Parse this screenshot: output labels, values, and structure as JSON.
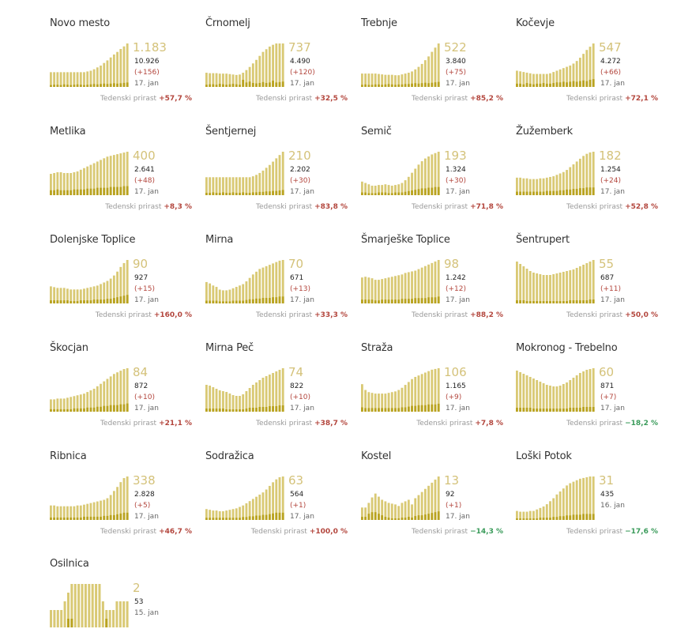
{
  "growth_label": "Tedenski prirast",
  "colors": {
    "bar": "#d9c974",
    "bar_dark": "#b9a320",
    "accent_text": "#d4c27a",
    "positive": "#b3463d",
    "negative": "#3a9b5a"
  },
  "chart_data": [
    {
      "type": "bar",
      "title": "Novo mesto",
      "big": "1.183",
      "total": "10.926",
      "increase": "(+156)",
      "date": "17. jan",
      "growth": "+57,7 %",
      "growth_sign": "pos",
      "values": [
        40,
        40,
        40,
        40,
        40,
        40,
        40,
        40,
        40,
        40,
        40,
        42,
        44,
        48,
        53,
        58,
        65,
        72,
        80,
        88,
        95,
        103,
        110,
        118
      ],
      "values_dark": [
        5,
        6,
        6,
        5,
        7,
        6,
        5,
        6,
        7,
        6,
        5,
        6,
        7,
        8,
        7,
        8,
        9,
        8,
        9,
        10,
        9,
        10,
        11,
        12
      ]
    },
    {
      "type": "bar",
      "title": "Črnomelj",
      "big": "737",
      "total": "4.490",
      "increase": "(+120)",
      "date": "17. jan",
      "growth": "+32,5 %",
      "growth_sign": "pos",
      "values": [
        32,
        31,
        31,
        31,
        30,
        30,
        30,
        29,
        28,
        27,
        28,
        32,
        38,
        45,
        53,
        61,
        70,
        79,
        85,
        91,
        95,
        98,
        98,
        98
      ],
      "values_dark": [
        5,
        6,
        6,
        5,
        7,
        6,
        5,
        6,
        7,
        6,
        5,
        16,
        10,
        12,
        9,
        8,
        9,
        11,
        9,
        10,
        14,
        10,
        11,
        12
      ]
    },
    {
      "type": "bar",
      "title": "Trebnje",
      "big": "522",
      "total": "3.840",
      "increase": "(+75)",
      "date": "17. jan",
      "growth": "+85,2 %",
      "growth_sign": "pos",
      "values": [
        32,
        32,
        32,
        32,
        32,
        31,
        30,
        29,
        29,
        29,
        28,
        28,
        30,
        32,
        34,
        37,
        42,
        48,
        55,
        64,
        73,
        84,
        94,
        104
      ],
      "values_dark": [
        5,
        6,
        5,
        5,
        6,
        6,
        5,
        6,
        7,
        6,
        5,
        6,
        6,
        7,
        7,
        8,
        9,
        8,
        9,
        10,
        9,
        10,
        11,
        12
      ]
    },
    {
      "type": "bar",
      "title": "Kočevje",
      "big": "547",
      "total": "4.272",
      "increase": "(+66)",
      "date": "17. jan",
      "growth": "+72,1 %",
      "growth_sign": "pos",
      "values": [
        25,
        24,
        23,
        22,
        21,
        20,
        20,
        20,
        20,
        20,
        21,
        23,
        25,
        27,
        29,
        31,
        33,
        36,
        40,
        45,
        51,
        57,
        62,
        67
      ],
      "values_dark": [
        5,
        5,
        4,
        6,
        5,
        4,
        5,
        5,
        6,
        5,
        5,
        6,
        7,
        7,
        8,
        7,
        8,
        9,
        8,
        9,
        10,
        9,
        11,
        12
      ]
    },
    {
      "type": "bar",
      "title": "Metlika",
      "big": "400",
      "total": "2.641",
      "increase": "(+48)",
      "date": "17. jan",
      "growth": "+8,3 %",
      "growth_sign": "pos",
      "values": [
        26,
        27,
        28,
        28,
        27,
        27,
        27,
        28,
        29,
        31,
        33,
        35,
        37,
        39,
        41,
        43,
        45,
        47,
        48,
        49,
        50,
        51,
        52,
        53
      ],
      "values_dark": [
        6,
        6,
        7,
        6,
        6,
        6,
        6,
        7,
        7,
        7,
        7,
        8,
        8,
        8,
        9,
        9,
        9,
        9,
        10,
        10,
        10,
        10,
        11,
        11
      ]
    },
    {
      "type": "bar",
      "title": "Šentjernej",
      "big": "210",
      "total": "2.202",
      "increase": "(+30)",
      "date": "17. jan",
      "growth": "+83,8 %",
      "growth_sign": "pos",
      "values": [
        38,
        38,
        38,
        38,
        38,
        38,
        38,
        38,
        38,
        38,
        38,
        38,
        38,
        38,
        40,
        43,
        47,
        52,
        58,
        64,
        71,
        78,
        85,
        92
      ],
      "values_dark": [
        5,
        5,
        6,
        5,
        5,
        6,
        5,
        5,
        6,
        5,
        5,
        6,
        5,
        5,
        6,
        6,
        7,
        7,
        8,
        8,
        9,
        9,
        10,
        11
      ]
    },
    {
      "type": "bar",
      "title": "Semič",
      "big": "193",
      "total": "1.324",
      "increase": "(+30)",
      "date": "17. jan",
      "growth": "+71,8 %",
      "growth_sign": "pos",
      "values": [
        20,
        18,
        16,
        14,
        14,
        15,
        15,
        16,
        15,
        14,
        15,
        16,
        18,
        22,
        27,
        33,
        39,
        45,
        50,
        54,
        57,
        60,
        62,
        64
      ],
      "values_dark": [
        4,
        4,
        3,
        3,
        3,
        4,
        4,
        4,
        3,
        3,
        4,
        4,
        4,
        5,
        6,
        7,
        8,
        9,
        10,
        10,
        11,
        11,
        12,
        12
      ]
    },
    {
      "type": "bar",
      "title": "Žužemberk",
      "big": "182",
      "total": "1.254",
      "increase": "(+24)",
      "date": "17. jan",
      "growth": "+52,8 %",
      "growth_sign": "pos",
      "values": [
        25,
        25,
        24,
        24,
        23,
        23,
        23,
        24,
        24,
        25,
        26,
        27,
        29,
        31,
        33,
        36,
        40,
        44,
        48,
        52,
        56,
        59,
        61,
        62
      ],
      "values_dark": [
        5,
        5,
        5,
        5,
        5,
        5,
        5,
        5,
        5,
        6,
        6,
        6,
        6,
        7,
        7,
        8,
        8,
        9,
        9,
        10,
        10,
        11,
        11,
        11
      ]
    },
    {
      "type": "bar",
      "title": "Dolenjske Toplice",
      "big": "90",
      "total": "927",
      "increase": "(+15)",
      "date": "17. jan",
      "growth": "+160,0 %",
      "growth_sign": "pos",
      "values": [
        22,
        21,
        20,
        20,
        20,
        19,
        18,
        18,
        18,
        18,
        19,
        20,
        21,
        22,
        23,
        25,
        27,
        29,
        32,
        36,
        41,
        47,
        52,
        56
      ],
      "values_dark": [
        4,
        4,
        4,
        4,
        4,
        4,
        3,
        3,
        3,
        4,
        4,
        4,
        4,
        5,
        5,
        5,
        5,
        6,
        6,
        7,
        8,
        9,
        10,
        11
      ]
    },
    {
      "type": "bar",
      "title": "Mirna",
      "big": "70",
      "total": "671",
      "increase": "(+13)",
      "date": "17. jan",
      "growth": "+33,3 %",
      "growth_sign": "pos",
      "values": [
        31,
        29,
        26,
        24,
        20,
        19,
        19,
        20,
        22,
        24,
        26,
        28,
        32,
        37,
        42,
        46,
        50,
        52,
        54,
        56,
        58,
        60,
        62,
        63
      ],
      "values_dark": [
        4,
        4,
        4,
        4,
        3,
        3,
        3,
        3,
        4,
        4,
        4,
        4,
        5,
        6,
        6,
        7,
        7,
        8,
        8,
        8,
        9,
        9,
        10,
        10
      ]
    },
    {
      "type": "bar",
      "title": "Šmarješke Toplice",
      "big": "98",
      "total": "1.242",
      "increase": "(+12)",
      "date": "17. jan",
      "growth": "+88,2 %",
      "growth_sign": "pos",
      "values": [
        34,
        35,
        34,
        33,
        31,
        31,
        32,
        33,
        34,
        35,
        36,
        37,
        38,
        40,
        41,
        42,
        43,
        45,
        47,
        49,
        51,
        53,
        55,
        57
      ],
      "values_dark": [
        5,
        5,
        5,
        5,
        4,
        4,
        5,
        5,
        5,
        5,
        5,
        5,
        6,
        6,
        6,
        6,
        7,
        7,
        7,
        7,
        8,
        8,
        8,
        9
      ]
    },
    {
      "type": "bar",
      "title": "Šentrupert",
      "big": "55",
      "total": "687",
      "increase": "(+11)",
      "date": "17. jan",
      "growth": "+50,0 %",
      "growth_sign": "pos",
      "values": [
        53,
        50,
        47,
        44,
        41,
        39,
        38,
        37,
        36,
        36,
        36,
        37,
        38,
        39,
        40,
        41,
        42,
        43,
        45,
        47,
        49,
        51,
        53,
        55
      ],
      "values_dark": [
        4,
        4,
        4,
        3,
        3,
        3,
        3,
        3,
        3,
        3,
        3,
        3,
        3,
        3,
        3,
        3,
        4,
        4,
        4,
        4,
        4,
        4,
        5,
        5
      ]
    },
    {
      "type": "bar",
      "title": "Škocjan",
      "big": "84",
      "total": "872",
      "increase": "(+10)",
      "date": "17. jan",
      "growth": "+21,1 %",
      "growth_sign": "pos",
      "values": [
        15,
        15,
        16,
        16,
        16,
        17,
        18,
        19,
        20,
        21,
        22,
        24,
        26,
        28,
        31,
        34,
        37,
        40,
        43,
        46,
        48,
        50,
        52,
        53
      ],
      "values_dark": [
        3,
        3,
        3,
        3,
        3,
        3,
        3,
        4,
        4,
        4,
        4,
        5,
        5,
        5,
        6,
        6,
        7,
        7,
        8,
        8,
        8,
        9,
        9,
        10
      ]
    },
    {
      "type": "bar",
      "title": "Mirna Peč",
      "big": "74",
      "total": "822",
      "increase": "(+10)",
      "date": "17. jan",
      "growth": "+38,7 %",
      "growth_sign": "pos",
      "values": [
        34,
        33,
        31,
        29,
        27,
        26,
        25,
        23,
        21,
        20,
        20,
        22,
        26,
        30,
        34,
        37,
        40,
        43,
        45,
        47,
        49,
        51,
        53,
        55
      ],
      "values_dark": [
        4,
        4,
        4,
        4,
        4,
        4,
        3,
        3,
        3,
        3,
        3,
        3,
        4,
        5,
        5,
        5,
        6,
        6,
        6,
        7,
        7,
        7,
        8,
        8
      ]
    },
    {
      "type": "bar",
      "title": "Straža",
      "big": "106",
      "total": "1.165",
      "increase": "(+9)",
      "date": "17. jan",
      "growth": "+7,8 %",
      "growth_sign": "pos",
      "values": [
        38,
        30,
        27,
        26,
        25,
        25,
        25,
        25,
        26,
        27,
        28,
        30,
        33,
        37,
        41,
        45,
        48,
        50,
        52,
        54,
        56,
        58,
        59,
        60
      ],
      "values_dark": [
        6,
        5,
        5,
        5,
        5,
        5,
        5,
        5,
        5,
        5,
        5,
        5,
        6,
        6,
        7,
        8,
        8,
        9,
        9,
        9,
        10,
        10,
        10,
        11
      ]
    },
    {
      "type": "bar",
      "title": "Mokronog - Trebelno",
      "big": "60",
      "total": "871",
      "increase": "(+7)",
      "date": "17. jan",
      "growth": "−18,2 %",
      "growth_sign": "neg",
      "values": [
        52,
        50,
        48,
        46,
        44,
        42,
        40,
        38,
        36,
        34,
        33,
        32,
        32,
        33,
        35,
        37,
        40,
        43,
        46,
        49,
        51,
        53,
        54,
        55
      ],
      "values_dark": [
        5,
        5,
        5,
        5,
        5,
        4,
        4,
        4,
        4,
        4,
        4,
        4,
        4,
        4,
        4,
        4,
        5,
        5,
        5,
        5,
        6,
        6,
        6,
        6
      ]
    },
    {
      "type": "bar",
      "title": "Ribnica",
      "big": "338",
      "total": "2.828",
      "increase": "(+5)",
      "date": "17. jan",
      "growth": "+46,7 %",
      "growth_sign": "pos",
      "values": [
        18,
        18,
        17,
        17,
        17,
        17,
        17,
        17,
        18,
        18,
        19,
        20,
        21,
        22,
        23,
        24,
        25,
        27,
        31,
        36,
        41,
        47,
        52,
        54
      ],
      "values_dark": [
        3,
        3,
        3,
        3,
        3,
        3,
        3,
        3,
        3,
        3,
        4,
        4,
        4,
        4,
        4,
        4,
        5,
        5,
        6,
        6,
        7,
        8,
        9,
        9
      ]
    },
    {
      "type": "bar",
      "title": "Sodražica",
      "big": "63",
      "total": "564",
      "increase": "(+1)",
      "date": "17. jan",
      "growth": "+100,0 %",
      "growth_sign": "pos",
      "values": [
        15,
        14,
        13,
        13,
        12,
        12,
        13,
        14,
        15,
        16,
        18,
        20,
        23,
        26,
        29,
        32,
        35,
        38,
        42,
        47,
        52,
        56,
        59,
        60
      ],
      "values_dark": [
        3,
        3,
        3,
        3,
        3,
        3,
        3,
        3,
        3,
        3,
        3,
        4,
        4,
        5,
        5,
        6,
        6,
        7,
        7,
        8,
        9,
        10,
        10,
        10
      ]
    },
    {
      "type": "bar",
      "title": "Kostel",
      "big": "13",
      "total": "92",
      "increase": "(+1)",
      "date": "17. jan",
      "growth": "−14,3 %",
      "growth_sign": "neg",
      "values": [
        16,
        16,
        22,
        29,
        34,
        30,
        26,
        24,
        22,
        21,
        20,
        18,
        22,
        24,
        26,
        20,
        28,
        32,
        36,
        40,
        44,
        48,
        52,
        56
      ],
      "values_dark": [
        4,
        4,
        8,
        10,
        10,
        8,
        6,
        4,
        3,
        2,
        2,
        2,
        3,
        3,
        4,
        3,
        5,
        6,
        6,
        7,
        8,
        9,
        10,
        11
      ]
    },
    {
      "type": "bar",
      "title": "Loški Potok",
      "big": "31",
      "total": "435",
      "increase": "",
      "date": "16. jan",
      "growth": "−17,6 %",
      "growth_sign": "neg",
      "values": [
        12,
        11,
        11,
        11,
        12,
        12,
        14,
        16,
        18,
        21,
        25,
        29,
        34,
        38,
        42,
        46,
        49,
        51,
        53,
        55,
        56,
        57,
        58,
        58
      ],
      "values_dark": [
        2,
        2,
        2,
        2,
        2,
        2,
        2,
        3,
        3,
        3,
        3,
        4,
        4,
        5,
        5,
        6,
        6,
        7,
        7,
        7,
        8,
        8,
        8,
        8
      ]
    },
    {
      "type": "bar",
      "title": "Osilnica",
      "big": "2",
      "total": "53",
      "increase": "",
      "date": "15. jan",
      "growth": "",
      "growth_sign": "pos",
      "values": [
        2,
        2,
        2,
        2,
        3,
        4,
        5,
        5,
        5,
        5,
        5,
        5,
        5,
        5,
        5,
        3,
        2,
        2,
        2,
        3,
        3,
        3,
        3
      ],
      "values_dark": [
        0,
        0,
        0,
        0,
        0,
        1,
        1,
        0,
        0,
        0,
        0,
        0,
        0,
        0,
        0,
        0,
        1,
        0,
        0,
        0,
        0,
        0,
        0
      ]
    }
  ]
}
